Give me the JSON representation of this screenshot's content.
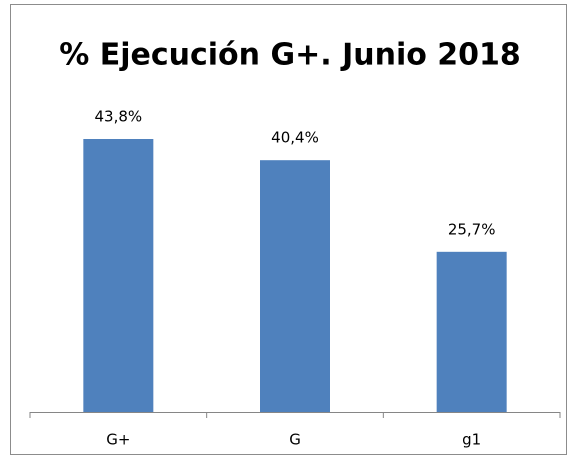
{
  "chart_data": {
    "type": "bar",
    "title": "% Ejecución G+. Junio 2018",
    "categories": [
      "G+",
      "G",
      "g1"
    ],
    "values": [
      43.8,
      40.4,
      25.7
    ],
    "value_labels": [
      "43,8%",
      "40,4%",
      "25,7%"
    ],
    "color": "#4f81bd"
  }
}
